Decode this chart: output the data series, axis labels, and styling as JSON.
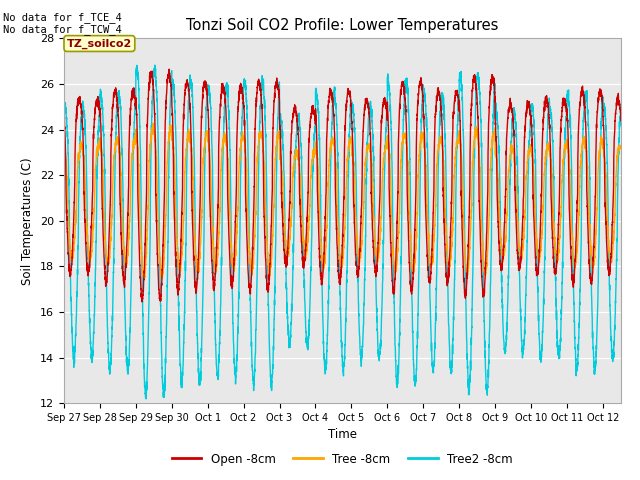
{
  "title": "Tonzi Soil CO2 Profile: Lower Temperatures",
  "xlabel": "Time",
  "ylabel": "Soil Temperatures (C)",
  "ylim": [
    12,
    28
  ],
  "yticks": [
    12,
    14,
    16,
    18,
    20,
    22,
    24,
    26,
    28
  ],
  "xtick_labels": [
    "Sep 27",
    "Sep 28",
    "Sep 29",
    "Sep 30",
    "Oct 1",
    "Oct 2",
    "Oct 3",
    "Oct 4",
    "Oct 5",
    "Oct 6",
    "Oct 7",
    "Oct 8",
    "Oct 9",
    "Oct 10",
    "Oct 11",
    "Oct 12"
  ],
  "annotation_text": "No data for f_TCE_4\nNo data for f_TCW_4",
  "legend_box_text": "TZ_soilco2",
  "legend_box_color": "#ffffcc",
  "legend_box_edge": "#999900",
  "colors": {
    "open": "#cc0000",
    "tree": "#ffa500",
    "tree2": "#00ccdd"
  },
  "line_labels": [
    "Open -8cm",
    "Tree -8cm",
    "Tree2 -8cm"
  ],
  "bg_color": "#e8e8e8",
  "fig_bg_color": "#ffffff",
  "num_days": 15.5,
  "points_per_day": 288
}
